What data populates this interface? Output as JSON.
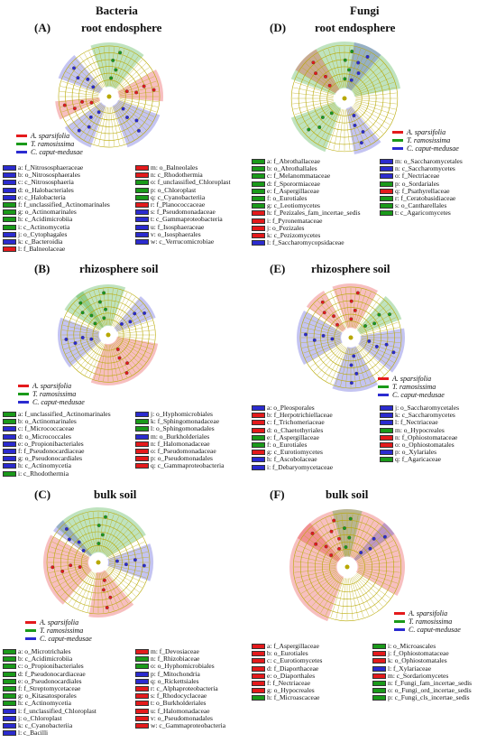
{
  "colors": {
    "red": "#e41a1c",
    "green": "#1a9a1a",
    "blue": "#2b2bd0",
    "axis": "#b8a800"
  },
  "columns": {
    "left": "Bacteria",
    "right": "Fungi"
  },
  "panels": [
    {
      "id": "A",
      "label": "(A)",
      "title": "root endosphere",
      "legend": [
        "A. sparsifolia",
        "T. ramosissima",
        "C. caput-medusae"
      ],
      "keys_left": [
        {
          "t": "a: f_Nitrososphaeraceae",
          "c": "blue"
        },
        {
          "t": "b: o_Nitrososphaerales",
          "c": "blue"
        },
        {
          "t": "c: c_Nitrososphaeria",
          "c": "blue"
        },
        {
          "t": "d: o_Halobacteriales",
          "c": "blue"
        },
        {
          "t": "e: c_Halobacteria",
          "c": "blue"
        },
        {
          "t": "f: f_unclassified_Actinomarinales",
          "c": "green"
        },
        {
          "t": "g: o_Actinomarinales",
          "c": "green"
        },
        {
          "t": "h: c_Acidimicrobiia",
          "c": "green"
        },
        {
          "t": "i: c_Actinomycetia",
          "c": "green"
        },
        {
          "t": "j: o_Cytophagales",
          "c": "blue"
        },
        {
          "t": "k: c_Bacteroidia",
          "c": "blue"
        },
        {
          "t": "l: f_Balneolaceae",
          "c": "red"
        }
      ],
      "keys_right": [
        {
          "t": "m: o_Balneolales",
          "c": "red"
        },
        {
          "t": "n: c_Rhodothermia",
          "c": "red"
        },
        {
          "t": "o: f_unclassified_Chloroplast",
          "c": "green"
        },
        {
          "t": "p: o_Chloroplast",
          "c": "green"
        },
        {
          "t": "q: c_Cyanobacteriia",
          "c": "green"
        },
        {
          "t": "r: f_Planococcaceae",
          "c": "red"
        },
        {
          "t": "s: f_Pseudomonadaceae",
          "c": "blue"
        },
        {
          "t": "t: c_Gammaproteobacteria",
          "c": "blue"
        },
        {
          "t": "u: f_Isosphaeraceae",
          "c": "blue"
        },
        {
          "t": "v: o_Isosphaerales",
          "c": "blue"
        },
        {
          "t": "w: c_Verrucomicrobiae",
          "c": "blue"
        }
      ]
    },
    {
      "id": "B",
      "label": "(B)",
      "title": "rhizosphere soil",
      "legend": [
        "A. sparsifolia",
        "T. ramosissima",
        "C. caput-medusae"
      ],
      "keys_left": [
        {
          "t": "a: f_unclassified_Actinomarinales",
          "c": "green"
        },
        {
          "t": "b: o_Actinomarinales",
          "c": "green"
        },
        {
          "t": "c: f_Micrococcaceae",
          "c": "blue"
        },
        {
          "t": "d: o_Micrococcales",
          "c": "blue"
        },
        {
          "t": "e: o_Propionibacteriales",
          "c": "blue"
        },
        {
          "t": "f: f_Pseudonocardiaceae",
          "c": "blue"
        },
        {
          "t": "g: o_Pseudonocardiales",
          "c": "blue"
        },
        {
          "t": "h: c_Actinomycetia",
          "c": "blue"
        },
        {
          "t": "i: c_Rhodothermia",
          "c": "green"
        }
      ],
      "keys_right": [
        {
          "t": "j: o_Hyphomicrobiales",
          "c": "blue"
        },
        {
          "t": "k: f_Sphingomonadaceae",
          "c": "green"
        },
        {
          "t": "l: o_Sphingomonadales",
          "c": "green"
        },
        {
          "t": "m: o_Burkholderiales",
          "c": "blue"
        },
        {
          "t": "n: f_Halomonadaceae",
          "c": "red"
        },
        {
          "t": "o: f_Pseudomonadaceae",
          "c": "red"
        },
        {
          "t": "p: o_Pseudomonadales",
          "c": "red"
        },
        {
          "t": "q: c_Gammaproteobacteria",
          "c": "red"
        }
      ]
    },
    {
      "id": "C",
      "label": "(C)",
      "title": "bulk soil",
      "legend": [
        "A. sparsifolia",
        "T. ramosissima",
        "C. caput-medusae"
      ],
      "keys_left": [
        {
          "t": "a: o_Microtrichales",
          "c": "green"
        },
        {
          "t": "b: c_Acidimicrobiia",
          "c": "green"
        },
        {
          "t": "c: o_Propionibacteriales",
          "c": "green"
        },
        {
          "t": "d: f_Pseudonocardiaceae",
          "c": "green"
        },
        {
          "t": "e: o_Pseudonocardiales",
          "c": "green"
        },
        {
          "t": "f: f_Streptomycetaceae",
          "c": "green"
        },
        {
          "t": "g: o_Kitasatosporales",
          "c": "green"
        },
        {
          "t": "h: c_Actinomycetia",
          "c": "green"
        },
        {
          "t": "i: f_unclassified_Chloroplast",
          "c": "blue"
        },
        {
          "t": "j: o_Chloroplast",
          "c": "blue"
        },
        {
          "t": "k: c_Cyanobacteriia",
          "c": "blue"
        },
        {
          "t": "l: c_Bacilli",
          "c": "blue"
        }
      ],
      "keys_right": [
        {
          "t": "m: f_Devosiaceae",
          "c": "red"
        },
        {
          "t": "n: f_Rhizobiaceae",
          "c": "green"
        },
        {
          "t": "o: o_Hyphomicrobiales",
          "c": "green"
        },
        {
          "t": "p: f_Mitochondria",
          "c": "blue"
        },
        {
          "t": "q: o_Rickettsiales",
          "c": "blue"
        },
        {
          "t": "r: c_Alphaproteobacteria",
          "c": "red"
        },
        {
          "t": "s: f_Rhodocyclaceae",
          "c": "red"
        },
        {
          "t": "t: o_Burkholderiales",
          "c": "red"
        },
        {
          "t": "u: f_Halomonadaceae",
          "c": "red"
        },
        {
          "t": "v: o_Pseudomonadales",
          "c": "red"
        },
        {
          "t": "w: c_Gammaproteobacteria",
          "c": "red"
        }
      ]
    },
    {
      "id": "D",
      "label": "(D)",
      "title": "root endosphere",
      "legend": [
        "A. sparsifolia",
        "T. ramosissima",
        "C. caput-medusae"
      ],
      "keys_left": [
        {
          "t": "a: f_Abrothallaceae",
          "c": "green"
        },
        {
          "t": "b: o_Abrothallales",
          "c": "green"
        },
        {
          "t": "c: f_Melanommataceae",
          "c": "green"
        },
        {
          "t": "d: f_Sporormiaceae",
          "c": "green"
        },
        {
          "t": "e: f_Aspergillaceae",
          "c": "green"
        },
        {
          "t": "f: o_Eurotiales",
          "c": "green"
        },
        {
          "t": "g: c_Leotiomycetes",
          "c": "green"
        },
        {
          "t": "h: f_Pezizales_fam_incertae_sedis",
          "c": "red"
        },
        {
          "t": "i: f_Pyronemataceae",
          "c": "red"
        },
        {
          "t": "j: o_Pezizales",
          "c": "red"
        },
        {
          "t": "k: c_Pezizomycetes",
          "c": "red"
        },
        {
          "t": "l: f_Saccharomycopsidaceae",
          "c": "blue"
        }
      ],
      "keys_right": [
        {
          "t": "m: o_Saccharomycetales",
          "c": "blue"
        },
        {
          "t": "n: c_Saccharomycetes",
          "c": "blue"
        },
        {
          "t": "o: f_Nectriaceae",
          "c": "blue"
        },
        {
          "t": "p: o_Sordariales",
          "c": "green"
        },
        {
          "t": "q: f_Psathyrellaceae",
          "c": "red"
        },
        {
          "t": "r: f_Ceratobasidiaceae",
          "c": "green"
        },
        {
          "t": "s: o_Cantharellales",
          "c": "green"
        },
        {
          "t": "t: c_Agaricomycetes",
          "c": "green"
        }
      ]
    },
    {
      "id": "E",
      "label": "(E)",
      "title": "rhizosphere soil",
      "legend": [
        "A. sparsifolia",
        "T. ramosissima",
        "C. caput-medusae"
      ],
      "keys_left": [
        {
          "t": "a: o_Pleosporales",
          "c": "blue"
        },
        {
          "t": "b: f_Herpotrichiellaceae",
          "c": "red"
        },
        {
          "t": "c: f_Trichomeriaceae",
          "c": "red"
        },
        {
          "t": "d: o_Chaetothyriales",
          "c": "red"
        },
        {
          "t": "e: f_Aspergillaceae",
          "c": "green"
        },
        {
          "t": "f: o_Eurotiales",
          "c": "green"
        },
        {
          "t": "g: c_Eurotiomycetes",
          "c": "red"
        },
        {
          "t": "h: f_Ascobolaceae",
          "c": "blue"
        },
        {
          "t": "i: f_Debaryomycetaceae",
          "c": "blue"
        }
      ],
      "keys_right": [
        {
          "t": "j: o_Saccharomycetales",
          "c": "blue"
        },
        {
          "t": "k: c_Saccharomycetes",
          "c": "blue"
        },
        {
          "t": "l: f_Nectriaceae",
          "c": "blue"
        },
        {
          "t": "m: o_Hypocreales",
          "c": "green"
        },
        {
          "t": "n: f_Ophiostomataceae",
          "c": "red"
        },
        {
          "t": "o: o_Ophiostomatales",
          "c": "red"
        },
        {
          "t": "p: o_Xylariales",
          "c": "blue"
        },
        {
          "t": "q: f_Agaricaceae",
          "c": "green"
        }
      ]
    },
    {
      "id": "F",
      "label": "(F)",
      "title": "bulk soil",
      "legend": [
        "A. sparsifolia",
        "T. ramosissima",
        "C. caput-medusae"
      ],
      "keys_left": [
        {
          "t": "a: f_Aspergillaceae",
          "c": "red"
        },
        {
          "t": "b: o_Eurotiales",
          "c": "red"
        },
        {
          "t": "c: c_Eurotiomycetes",
          "c": "red"
        },
        {
          "t": "d: f_Diaporthaceae",
          "c": "red"
        },
        {
          "t": "e: o_Diaporthales",
          "c": "red"
        },
        {
          "t": "f: f_Nectriaceae",
          "c": "red"
        },
        {
          "t": "g: o_Hypocreales",
          "c": "red"
        },
        {
          "t": "h: f_Microascaceae",
          "c": "green"
        }
      ],
      "keys_right": [
        {
          "t": "i: o_Microascales",
          "c": "green"
        },
        {
          "t": "j: f_Ophiostomataceae",
          "c": "red"
        },
        {
          "t": "k: o_Ophiostomatales",
          "c": "red"
        },
        {
          "t": "l: f_Xylariaceae",
          "c": "blue"
        },
        {
          "t": "m: c_Sordariomycetes",
          "c": "red"
        },
        {
          "t": "n: f_Fungi_fam_incertae_sedis",
          "c": "green"
        },
        {
          "t": "o: o_Fungi_ord_incertae_sedis",
          "c": "green"
        },
        {
          "t": "p: c_Fungi_cls_incertae_sedis",
          "c": "green"
        }
      ]
    }
  ],
  "clado_wedges": {
    "A": [
      {
        "c": "green",
        "a0": -20,
        "a1": 40
      },
      {
        "c": "red",
        "a0": 60,
        "a1": 95
      },
      {
        "c": "blue",
        "a0": 110,
        "a1": 160
      },
      {
        "c": "blue",
        "a0": 200,
        "a1": 235
      },
      {
        "c": "red",
        "a0": 245,
        "a1": 265
      },
      {
        "c": "blue",
        "a0": 290,
        "a1": 320
      }
    ],
    "B": [
      {
        "c": "green",
        "a0": -40,
        "a1": 20
      },
      {
        "c": "blue",
        "a0": 40,
        "a1": 70
      },
      {
        "c": "red",
        "a0": 100,
        "a1": 200
      },
      {
        "c": "blue",
        "a0": 230,
        "a1": 290
      },
      {
        "c": "green",
        "a0": 300,
        "a1": 330
      }
    ],
    "C": [
      {
        "c": "green",
        "a0": -50,
        "a1": 60
      },
      {
        "c": "blue",
        "a0": 70,
        "a1": 110
      },
      {
        "c": "red",
        "a0": 140,
        "a1": 190
      },
      {
        "c": "red",
        "a0": 220,
        "a1": 300
      },
      {
        "c": "blue",
        "a0": 305,
        "a1": 320
      }
    ],
    "D": [
      {
        "c": "green",
        "a0": -70,
        "a1": 80
      },
      {
        "c": "red",
        "a0": -60,
        "a1": -30
      },
      {
        "c": "blue",
        "a0": 10,
        "a1": 40
      },
      {
        "c": "blue",
        "a0": 140,
        "a1": 170
      },
      {
        "c": "green",
        "a0": 200,
        "a1": 250
      }
    ],
    "E": [
      {
        "c": "red",
        "a0": -20,
        "a1": 30
      },
      {
        "c": "green",
        "a0": 40,
        "a1": 70
      },
      {
        "c": "blue",
        "a0": 80,
        "a1": 130
      },
      {
        "c": "blue",
        "a0": 150,
        "a1": 200
      },
      {
        "c": "blue",
        "a0": 240,
        "a1": 300
      },
      {
        "c": "red",
        "a0": 305,
        "a1": 330
      }
    ],
    "F": [
      {
        "c": "red",
        "a0": -160,
        "a1": 120
      },
      {
        "c": "green",
        "a0": -15,
        "a1": 15
      },
      {
        "c": "blue",
        "a0": 40,
        "a1": 55
      },
      {
        "c": "red",
        "a0": -60,
        "a1": -40
      }
    ]
  }
}
